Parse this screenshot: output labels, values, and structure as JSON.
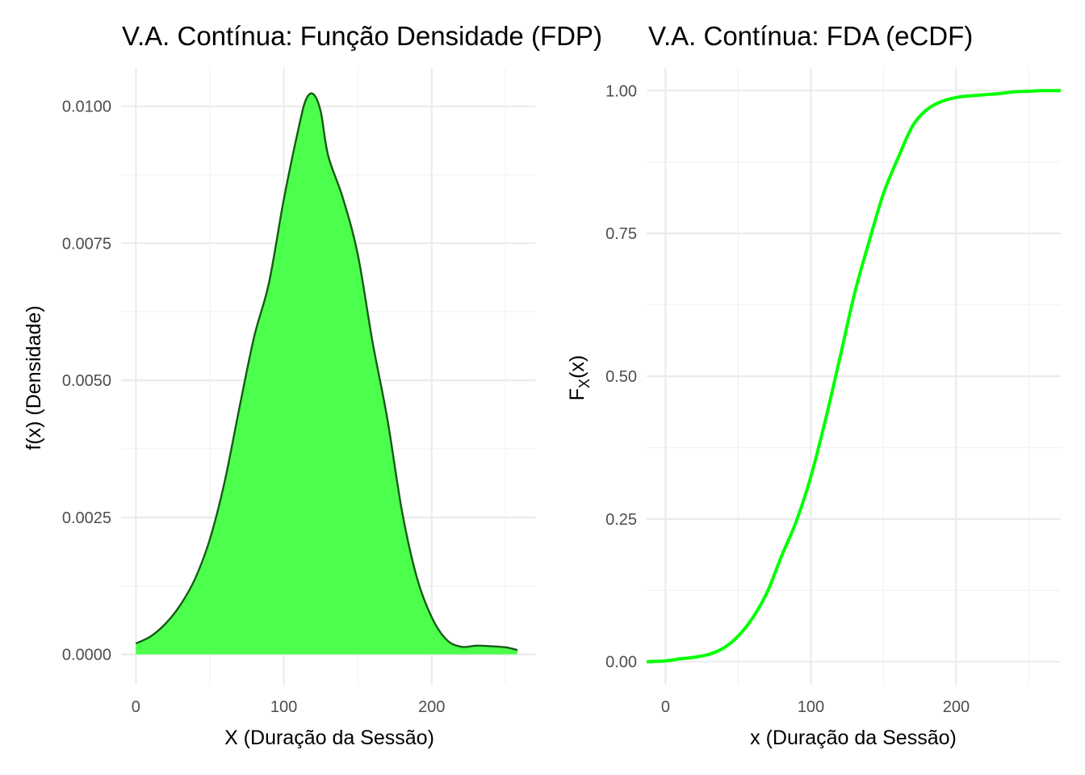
{
  "chart_data": [
    {
      "type": "area",
      "title": "V.A. Contínua: Função Densidade (FDP)",
      "xlabel": "X (Duração da Sessão)",
      "ylabel": "f(x) (Densidade)",
      "xlim": [
        -10,
        270
      ],
      "ylim": [
        -0.00055,
        0.0107
      ],
      "x_ticks": [
        0,
        100,
        200
      ],
      "x_tick_labels": [
        "0",
        "100",
        "200"
      ],
      "y_ticks": [
        0,
        0.0025,
        0.005,
        0.0075,
        0.01
      ],
      "y_tick_labels": [
        "0.0000",
        "0.0025",
        "0.0050",
        "0.0075",
        "0.0100"
      ],
      "grid": true,
      "fill_color": "#4cff4c",
      "line_color": "#155b15",
      "x": [
        0,
        10,
        20,
        30,
        40,
        50,
        60,
        70,
        80,
        90,
        100,
        110,
        115,
        120,
        125,
        130,
        140,
        150,
        160,
        170,
        180,
        190,
        200,
        210,
        220,
        230,
        240,
        250,
        258
      ],
      "y": [
        0.0002,
        0.00033,
        0.00056,
        0.0009,
        0.00138,
        0.0021,
        0.00315,
        0.0045,
        0.0058,
        0.00678,
        0.0083,
        0.0096,
        0.01012,
        0.01022,
        0.0099,
        0.0091,
        0.00832,
        0.0073,
        0.0057,
        0.0043,
        0.0026,
        0.0014,
        0.00068,
        0.00027,
        0.00014,
        0.00016,
        0.00015,
        0.00013,
        8e-05
      ]
    },
    {
      "type": "line",
      "title": "V.A. Contínua: FDA (eCDF)",
      "xlabel": "x (Duração da Sessão)",
      "ylabel": "F_X(x)",
      "ylabel_main": "F",
      "ylabel_sub": "X",
      "ylabel_tail": "(x)",
      "xlim": [
        -13,
        272
      ],
      "ylim": [
        -0.04,
        1.04
      ],
      "x_ticks": [
        0,
        100,
        200
      ],
      "x_tick_labels": [
        "0",
        "100",
        "200"
      ],
      "y_ticks": [
        0,
        0.25,
        0.5,
        0.75,
        1
      ],
      "y_tick_labels": [
        "0.00",
        "0.25",
        "0.50",
        "0.75",
        "1.00"
      ],
      "grid": true,
      "line_color": "#00ff00",
      "x": [
        -13,
        0,
        10,
        20,
        30,
        40,
        50,
        60,
        70,
        80,
        90,
        100,
        110,
        120,
        130,
        140,
        150,
        160,
        170,
        180,
        190,
        200,
        210,
        220,
        230,
        240,
        250,
        260,
        272
      ],
      "y": [
        0,
        0.0015,
        0.005,
        0.008,
        0.013,
        0.024,
        0.045,
        0.077,
        0.122,
        0.186,
        0.246,
        0.324,
        0.423,
        0.532,
        0.644,
        0.735,
        0.82,
        0.882,
        0.938,
        0.967,
        0.981,
        0.988,
        0.991,
        0.993,
        0.995,
        0.998,
        0.999,
        1.0,
        1.0
      ]
    }
  ]
}
